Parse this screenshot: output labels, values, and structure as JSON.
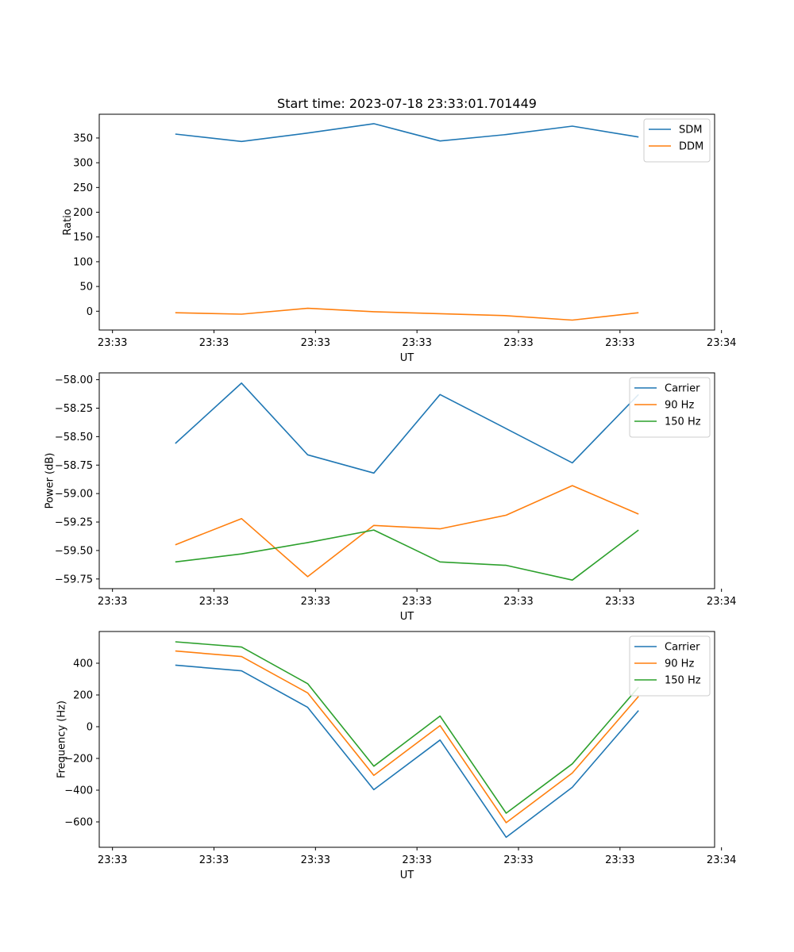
{
  "chart_data": [
    {
      "type": "line",
      "title": "Start time: 2023-07-18 23:33:01.701449",
      "xlabel": "UT",
      "ylabel": "Ratio",
      "xlim": [
        0,
        9.3
      ],
      "ylim": [
        -38,
        398
      ],
      "x_ticks": [
        0.2,
        1.734,
        3.268,
        4.802,
        6.336,
        7.87,
        9.404
      ],
      "x_tick_labels": [
        "23:33",
        "23:33",
        "23:33",
        "23:33",
        "23:33",
        "23:33",
        "23:34"
      ],
      "y_ticks": [
        0,
        50,
        100,
        150,
        200,
        250,
        300,
        350
      ],
      "y_tick_labels": [
        "0",
        "50",
        "100",
        "150",
        "200",
        "250",
        "300",
        "350"
      ],
      "x": [
        1.15,
        2.15,
        3.15,
        4.15,
        5.15,
        6.15,
        7.15,
        8.15
      ],
      "series": [
        {
          "name": "SDM",
          "color": "#1f77b4",
          "values": [
            358,
            343,
            360,
            379,
            344,
            357,
            374,
            352
          ]
        },
        {
          "name": "DDM",
          "color": "#ff7f0e",
          "values": [
            -3,
            -6,
            6,
            -1,
            -5,
            -9,
            -18,
            -3
          ]
        }
      ],
      "legend_position": "top-right"
    },
    {
      "type": "line",
      "title": "",
      "xlabel": "UT",
      "ylabel": "Power (dB)",
      "xlim": [
        0,
        9.3
      ],
      "ylim": [
        -59.835,
        -57.94
      ],
      "x_ticks": [
        0.2,
        1.734,
        3.268,
        4.802,
        6.336,
        7.87,
        9.404
      ],
      "x_tick_labels": [
        "23:33",
        "23:33",
        "23:33",
        "23:33",
        "23:33",
        "23:33",
        "23:34"
      ],
      "y_ticks": [
        -58.0,
        -58.25,
        -58.5,
        -58.75,
        -59.0,
        -59.25,
        -59.5,
        -59.75
      ],
      "y_tick_labels": [
        "−58.00",
        "−58.25",
        "−58.50",
        "−58.75",
        "−59.00",
        "−59.25",
        "−59.50",
        "−59.75"
      ],
      "x": [
        1.15,
        2.15,
        3.15,
        4.15,
        5.15,
        6.15,
        7.15,
        8.15
      ],
      "series": [
        {
          "name": "Carrier",
          "color": "#1f77b4",
          "values": [
            -58.56,
            -58.03,
            -58.66,
            -58.82,
            -58.13,
            -58.43,
            -58.73,
            -58.13
          ]
        },
        {
          "name": "90 Hz",
          "color": "#ff7f0e",
          "values": [
            -59.45,
            -59.22,
            -59.73,
            -59.28,
            -59.31,
            -59.19,
            -58.93,
            -59.18
          ]
        },
        {
          "name": "150 Hz",
          "color": "#2ca02c",
          "values": [
            -59.6,
            -59.53,
            -59.43,
            -59.32,
            -59.6,
            -59.63,
            -59.76,
            -59.32
          ]
        }
      ],
      "legend_position": "top-right"
    },
    {
      "type": "line",
      "title": "",
      "xlabel": "UT",
      "ylabel": "Frequency (Hz)",
      "xlim": [
        0,
        9.3
      ],
      "ylim": [
        -760,
        600
      ],
      "x_ticks": [
        0.2,
        1.734,
        3.268,
        4.802,
        6.336,
        7.87,
        9.404
      ],
      "x_tick_labels": [
        "23:33",
        "23:33",
        "23:33",
        "23:33",
        "23:33",
        "23:33",
        "23:34"
      ],
      "y_ticks": [
        400,
        200,
        0,
        -200,
        -400,
        -600
      ],
      "y_tick_labels": [
        "400",
        "200",
        "0",
        "−200",
        "−400",
        "−600"
      ],
      "x": [
        1.15,
        2.15,
        3.15,
        4.15,
        5.15,
        6.15,
        7.15,
        8.15
      ],
      "series": [
        {
          "name": "Carrier",
          "color": "#1f77b4",
          "values": [
            388,
            352,
            122,
            -397,
            -84,
            -697,
            -382,
            102
          ]
        },
        {
          "name": "90 Hz",
          "color": "#ff7f0e",
          "values": [
            477,
            442,
            213,
            -307,
            7,
            -605,
            -292,
            191
          ]
        },
        {
          "name": "150 Hz",
          "color": "#2ca02c",
          "values": [
            535,
            502,
            271,
            -249,
            67,
            -545,
            -234,
            249
          ]
        }
      ],
      "legend_position": "top-right"
    }
  ]
}
